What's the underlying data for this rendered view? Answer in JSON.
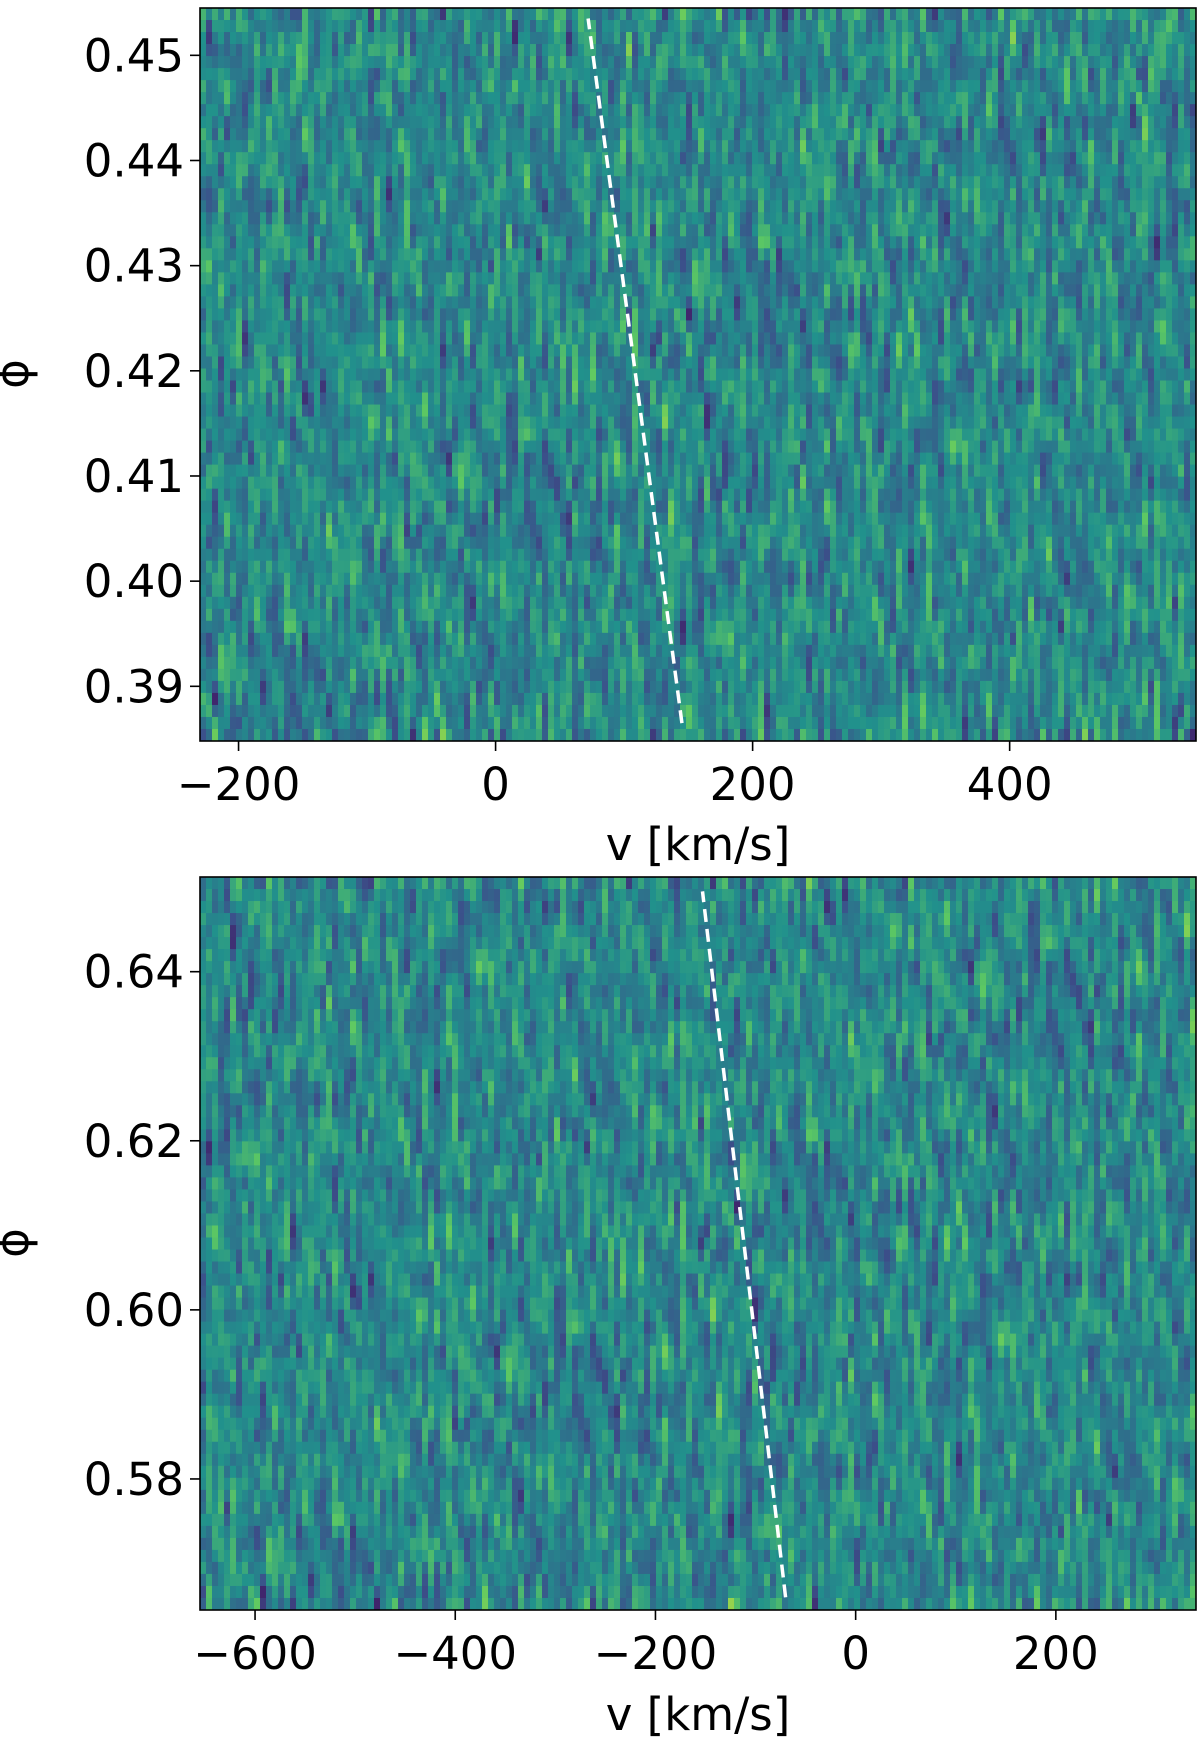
{
  "colormap": {
    "name": "viridis",
    "stops": [
      "#440154",
      "#3b528b",
      "#21918c",
      "#5ec962",
      "#fde725"
    ]
  },
  "chart_data": [
    {
      "type": "heatmap",
      "id": "top",
      "xlabel": "v [km/s]",
      "ylabel": "ϕ",
      "xlim": [
        -230,
        545
      ],
      "ylim": [
        0.3848,
        0.4545
      ],
      "xticks": [
        -200,
        0,
        200,
        400
      ],
      "xtick_labels": [
        "−200",
        "0",
        "200",
        "400"
      ],
      "yticks": [
        0.39,
        0.4,
        0.41,
        0.42,
        0.43,
        0.44,
        0.45
      ],
      "ytick_labels": [
        "0.39",
        "0.40",
        "0.41",
        "0.42",
        "0.43",
        "0.44",
        "0.45"
      ],
      "grid": false,
      "overlay_line": {
        "style": "dashed",
        "color": "#ffffff",
        "points": [
          [
            145,
            0.3865
          ],
          [
            72,
            0.4535
          ]
        ]
      }
    },
    {
      "type": "heatmap",
      "id": "bottom",
      "xlabel": "v [km/s]",
      "ylabel": "ϕ",
      "xlim": [
        -655,
        340
      ],
      "ylim": [
        0.5645,
        0.6512
      ],
      "xticks": [
        -600,
        -400,
        -200,
        0,
        200
      ],
      "xtick_labels": [
        "−600",
        "−400",
        "−200",
        "0",
        "200"
      ],
      "yticks": [
        0.58,
        0.6,
        0.62,
        0.64
      ],
      "ytick_labels": [
        "0.58",
        "0.60",
        "0.62",
        "0.64"
      ],
      "grid": false,
      "overlay_line": {
        "style": "dashed",
        "color": "#ffffff",
        "points": [
          [
            -70,
            0.566
          ],
          [
            -153,
            0.6495
          ]
        ]
      }
    }
  ]
}
